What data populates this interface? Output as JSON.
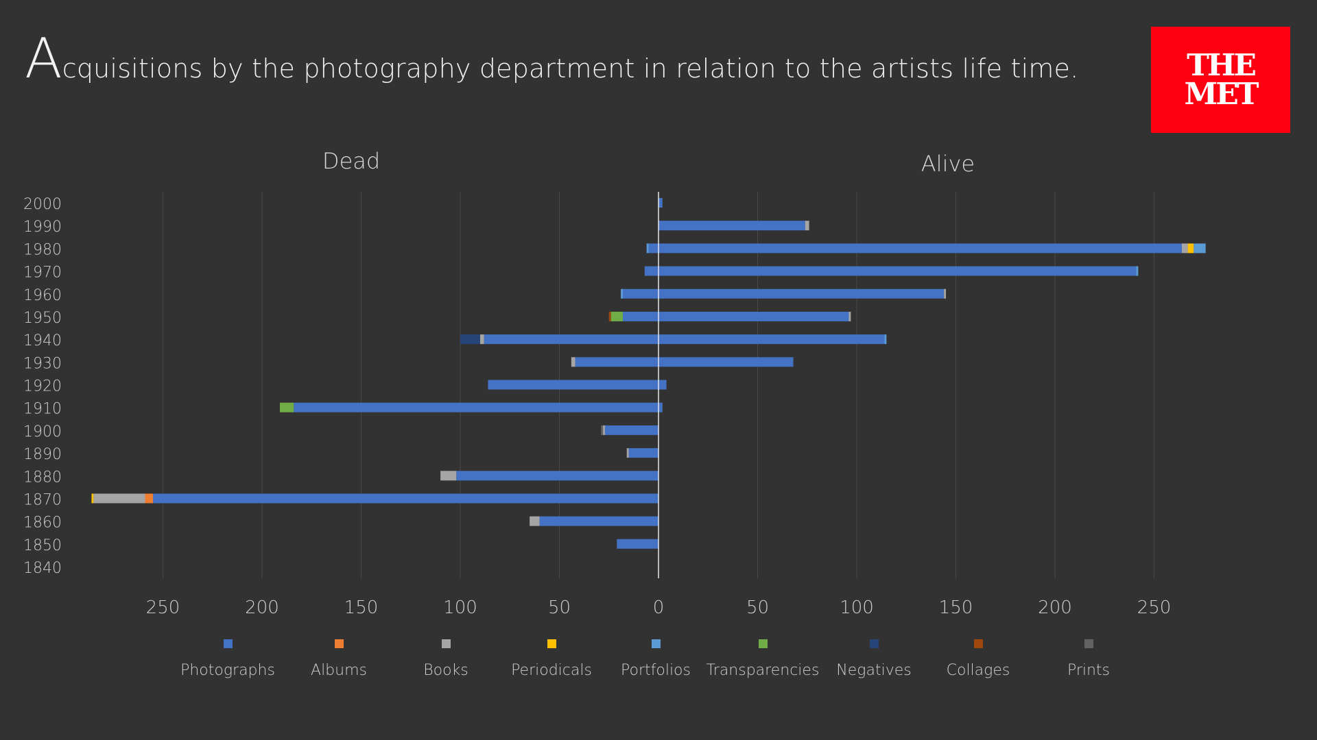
{
  "header": {
    "title_initial": "A",
    "title_rest": "cquisitions by the photography department in relation to the artists life time.",
    "logo_line1": "THE",
    "logo_line2": "MET",
    "logo_color": "#ff0013"
  },
  "chart_data": {
    "type": "bar",
    "orientation": "horizontal-diverging-stacked",
    "side_labels": {
      "left": "Dead",
      "right": "Alive"
    },
    "categories": [
      "2000",
      "1990",
      "1980",
      "1970",
      "1960",
      "1950",
      "1940",
      "1930",
      "1920",
      "1910",
      "1900",
      "1890",
      "1880",
      "1870",
      "1860",
      "1850",
      "1840"
    ],
    "x_ticks": [
      {
        "value": -250,
        "label": "250"
      },
      {
        "value": -200,
        "label": "200"
      },
      {
        "value": -150,
        "label": "150"
      },
      {
        "value": -100,
        "label": "100"
      },
      {
        "value": -50,
        "label": "50"
      },
      {
        "value": 0,
        "label": "0"
      },
      {
        "value": 50,
        "label": "50"
      },
      {
        "value": 100,
        "label": "100"
      },
      {
        "value": 150,
        "label": "150"
      },
      {
        "value": 200,
        "label": "200"
      },
      {
        "value": 250,
        "label": "250"
      }
    ],
    "xlim": [
      -290,
      296
    ],
    "grid": true,
    "legend_position": "bottom",
    "series": [
      {
        "name": "Photographs",
        "color": "#4472c4",
        "dead": [
          0,
          0,
          5,
          7,
          18,
          18,
          88,
          42,
          86,
          184,
          27,
          15,
          102,
          255,
          60,
          21,
          0
        ],
        "alive": [
          2,
          74,
          264,
          241,
          144,
          96,
          114,
          68,
          4,
          2,
          0,
          0,
          0,
          0,
          0,
          0,
          0
        ]
      },
      {
        "name": "Albums",
        "color": "#ed7d31",
        "dead": [
          0,
          0,
          0,
          0,
          0,
          0,
          0,
          0,
          0,
          0,
          0,
          0,
          0,
          4,
          0,
          0,
          0
        ],
        "alive": [
          0,
          0,
          0,
          0,
          0,
          0,
          0,
          0,
          0,
          0,
          0,
          0,
          0,
          0,
          0,
          0,
          0
        ]
      },
      {
        "name": "Books",
        "color": "#a5a5a5",
        "dead": [
          0,
          0,
          0,
          0,
          0,
          0,
          2,
          2,
          0,
          0,
          1,
          1,
          8,
          26,
          5,
          0,
          0
        ],
        "alive": [
          0,
          2,
          3,
          0,
          1,
          1,
          0,
          0,
          0,
          0,
          0,
          0,
          0,
          0,
          0,
          0,
          0
        ]
      },
      {
        "name": "Periodicals",
        "color": "#ffc000",
        "dead": [
          0,
          0,
          0,
          0,
          0,
          0,
          0,
          0,
          0,
          0,
          0,
          0,
          0,
          1,
          0,
          0,
          0
        ],
        "alive": [
          0,
          0,
          3,
          0,
          0,
          0,
          0,
          0,
          0,
          0,
          0,
          0,
          0,
          0,
          0,
          0,
          0
        ]
      },
      {
        "name": "Portfolios",
        "color": "#5b9bd5",
        "dead": [
          0,
          0,
          1,
          0,
          1,
          0,
          0,
          0,
          0,
          0,
          0,
          0,
          0,
          0,
          0,
          0,
          0
        ],
        "alive": [
          0,
          0,
          6,
          1,
          0,
          0,
          1,
          0,
          0,
          0,
          0,
          0,
          0,
          0,
          0,
          0,
          0
        ]
      },
      {
        "name": "Transparencies",
        "color": "#70ad47",
        "dead": [
          0,
          0,
          0,
          0,
          0,
          6,
          0,
          0,
          0,
          7,
          0,
          0,
          0,
          0,
          0,
          0,
          0
        ],
        "alive": [
          0,
          0,
          0,
          0,
          0,
          0,
          0,
          0,
          0,
          0,
          0,
          0,
          0,
          0,
          0,
          0,
          0
        ]
      },
      {
        "name": "Negatives",
        "color": "#264478",
        "dead": [
          0,
          0,
          0,
          0,
          0,
          0,
          10,
          0,
          0,
          0,
          0,
          0,
          0,
          0,
          0,
          0,
          0
        ],
        "alive": [
          0,
          0,
          0,
          0,
          0,
          0,
          0,
          0,
          0,
          0,
          0,
          0,
          0,
          0,
          0,
          0,
          0
        ]
      },
      {
        "name": "Collages",
        "color": "#9e480e",
        "dead": [
          0,
          0,
          0,
          0,
          0,
          1,
          0,
          0,
          0,
          0,
          0,
          0,
          0,
          0,
          0,
          0,
          0
        ],
        "alive": [
          0,
          0,
          0,
          0,
          0,
          0,
          0,
          0,
          0,
          0,
          0,
          0,
          0,
          0,
          0,
          0,
          0
        ]
      },
      {
        "name": "Prints",
        "color": "#636363",
        "dead": [
          0,
          0,
          0,
          0,
          0,
          0,
          0,
          0,
          0,
          0,
          1,
          0,
          0,
          0,
          0,
          0,
          0
        ],
        "alive": [
          0,
          0,
          0,
          0,
          0,
          0,
          0,
          0,
          0,
          0,
          0,
          0,
          0,
          0,
          0,
          0,
          0
        ]
      }
    ]
  }
}
